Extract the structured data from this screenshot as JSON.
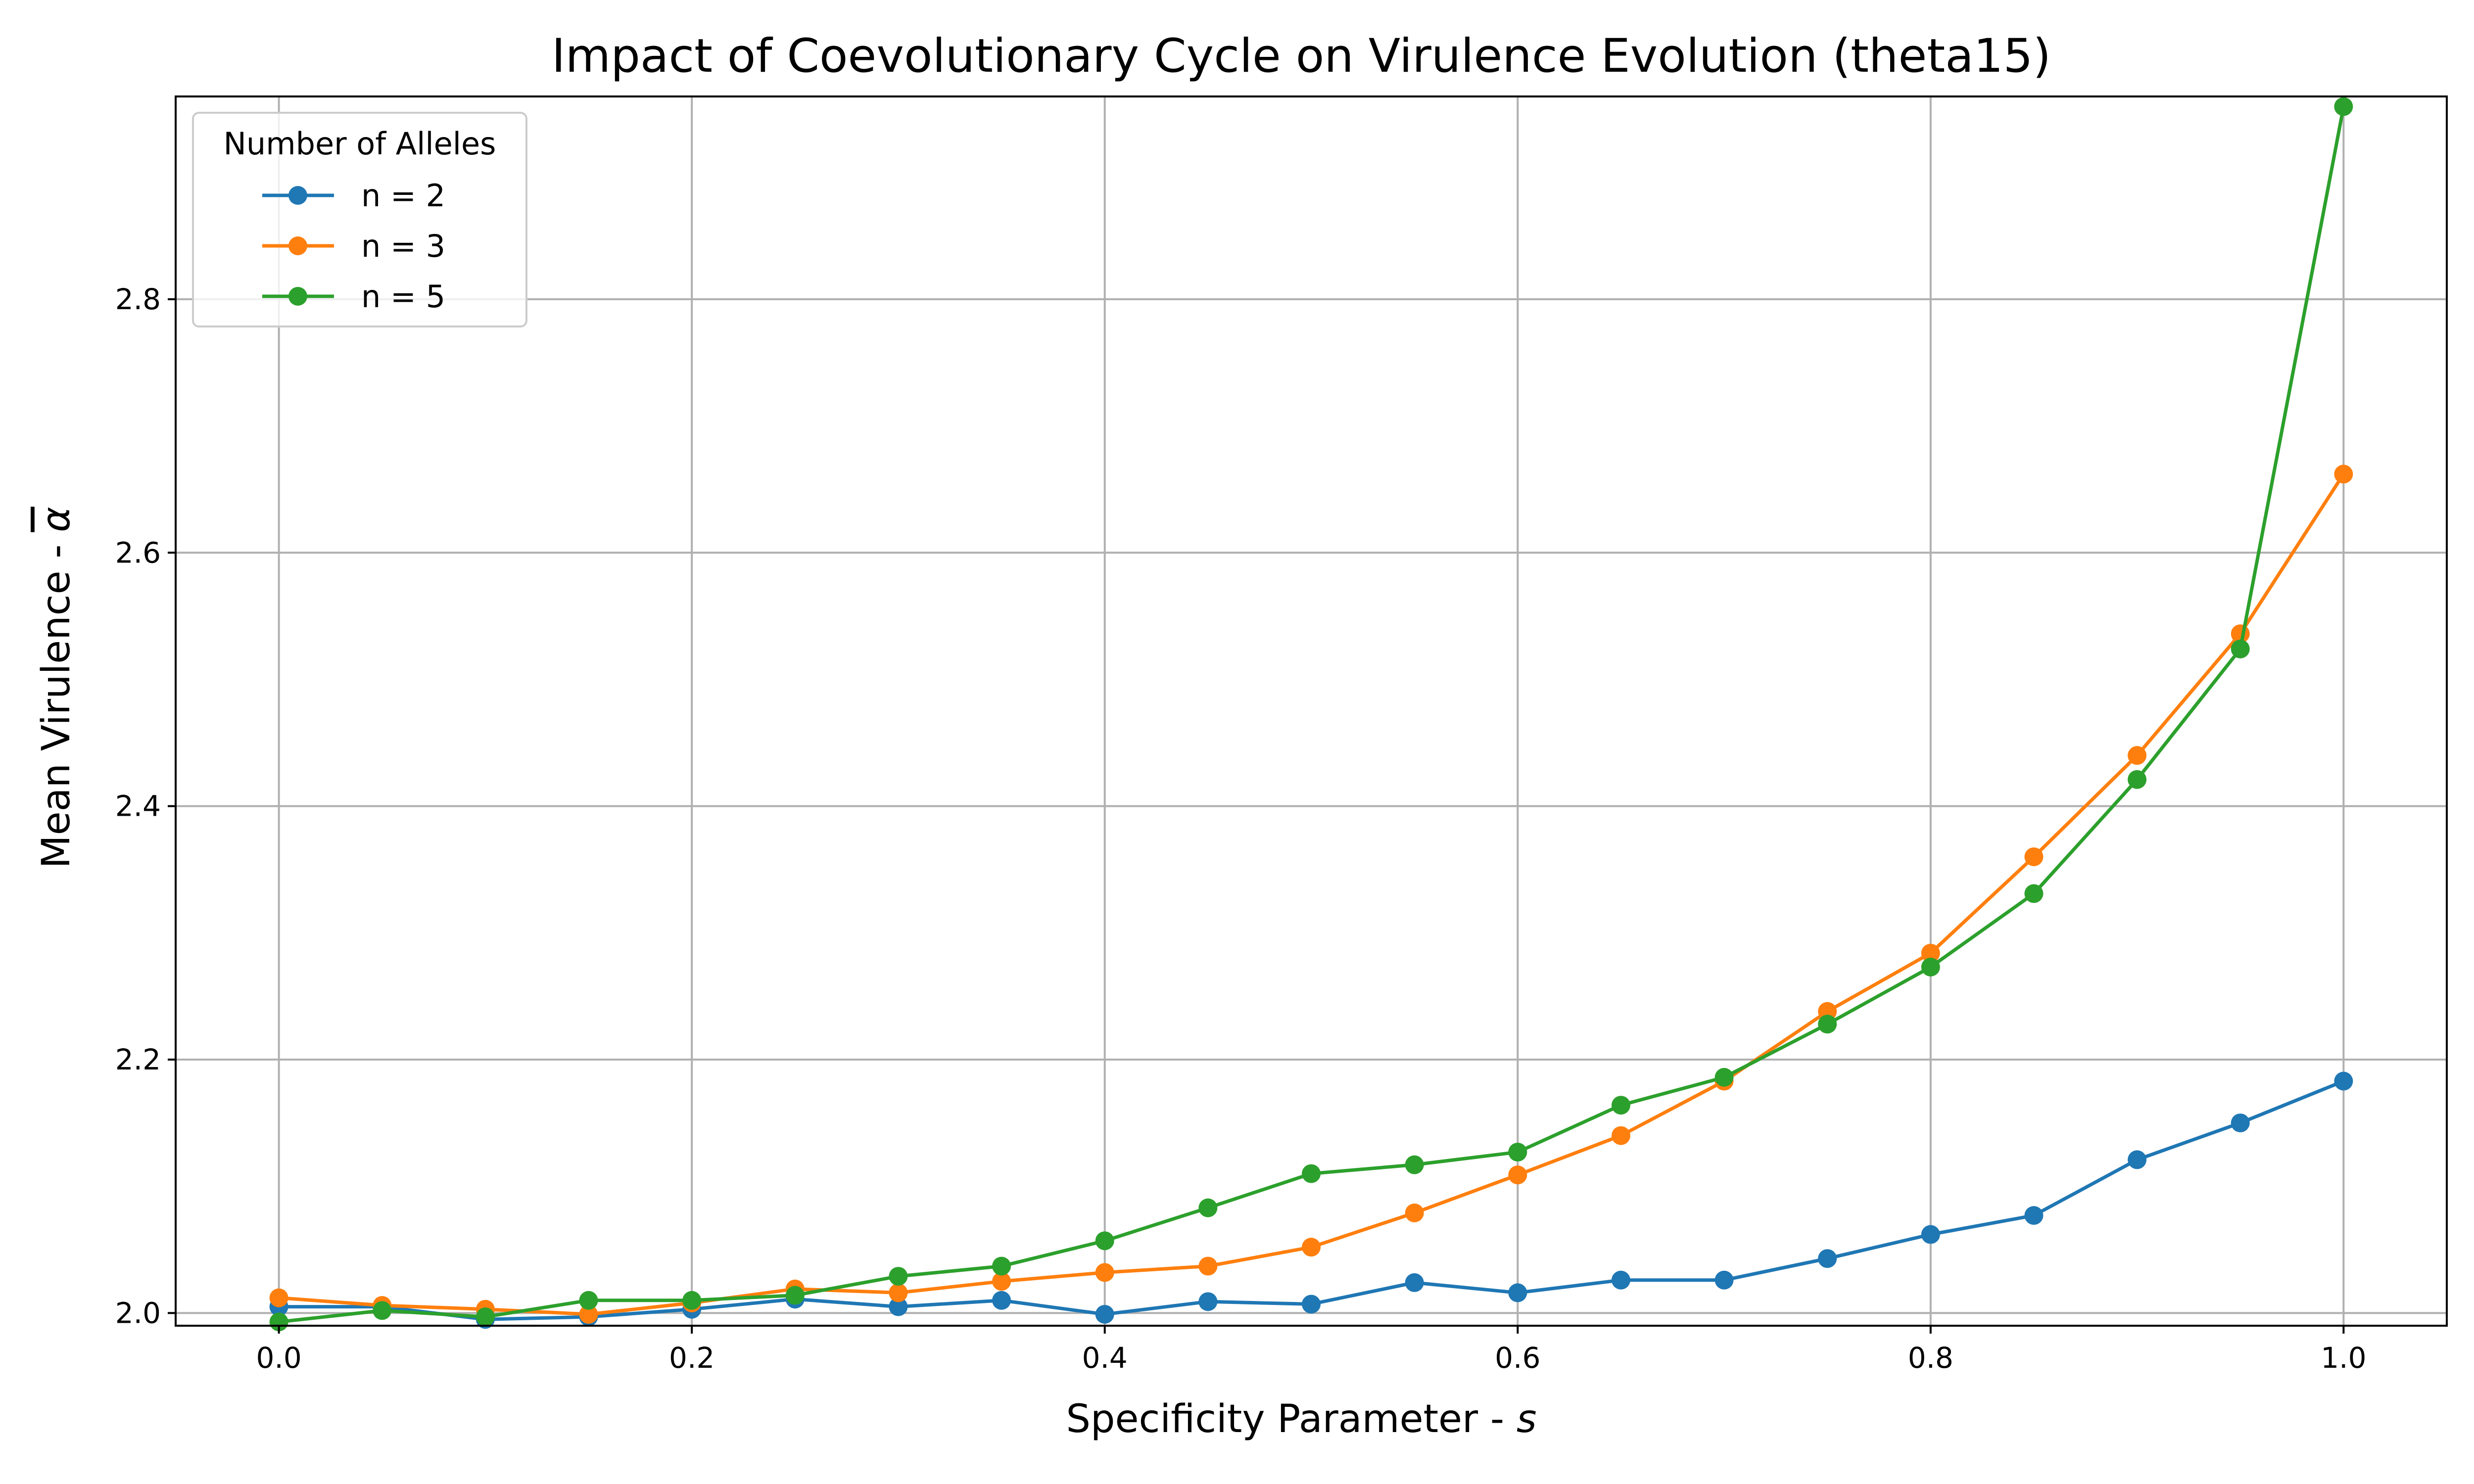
{
  "chart_data": {
    "type": "line",
    "title": "Impact of Coevolutionary Cycle on Virulence Evolution (theta15)",
    "xlabel": "Specificity Parameter - ",
    "xlabel_var": "s",
    "ylabel": "Mean Virulence - ",
    "ylabel_var": "α",
    "xlim": [
      -0.05,
      1.05
    ],
    "ylim": [
      1.99,
      2.96
    ],
    "x_ticks": [
      "0.0",
      "0.2",
      "0.4",
      "0.6",
      "0.8",
      "1.0"
    ],
    "y_ticks": [
      "2.0",
      "2.2",
      "2.4",
      "2.6",
      "2.8"
    ],
    "grid": true,
    "legend": {
      "title": "Number of Alleles",
      "position": "top-left"
    },
    "x": [
      0.0,
      0.05,
      0.1,
      0.15,
      0.2,
      0.25,
      0.3,
      0.35,
      0.4,
      0.45,
      0.5,
      0.55,
      0.6,
      0.65,
      0.7,
      0.75,
      0.8,
      0.85,
      0.9,
      0.95,
      1.0
    ],
    "series": [
      {
        "name": "n = 2",
        "color": "#1f77b4",
        "values": [
          2.005,
          2.005,
          1.995,
          1.997,
          2.003,
          2.011,
          2.005,
          2.01,
          1.999,
          2.009,
          2.007,
          2.024,
          2.016,
          2.026,
          2.026,
          2.043,
          2.062,
          2.077,
          2.121,
          2.15,
          2.183
        ]
      },
      {
        "name": "n = 3",
        "color": "#ff7f0e",
        "values": [
          2.012,
          2.006,
          2.003,
          1.999,
          2.008,
          2.019,
          2.016,
          2.025,
          2.032,
          2.037,
          2.052,
          2.079,
          2.109,
          2.14,
          2.183,
          2.238,
          2.284,
          2.36,
          2.44,
          2.536,
          2.662
        ]
      },
      {
        "name": "n = 5",
        "color": "#2ca02c",
        "values": [
          1.993,
          2.002,
          1.997,
          2.01,
          2.01,
          2.014,
          2.029,
          2.037,
          2.057,
          2.083,
          2.11,
          2.117,
          2.127,
          2.164,
          2.186,
          2.228,
          2.273,
          2.331,
          2.421,
          2.524,
          2.952
        ]
      }
    ]
  }
}
